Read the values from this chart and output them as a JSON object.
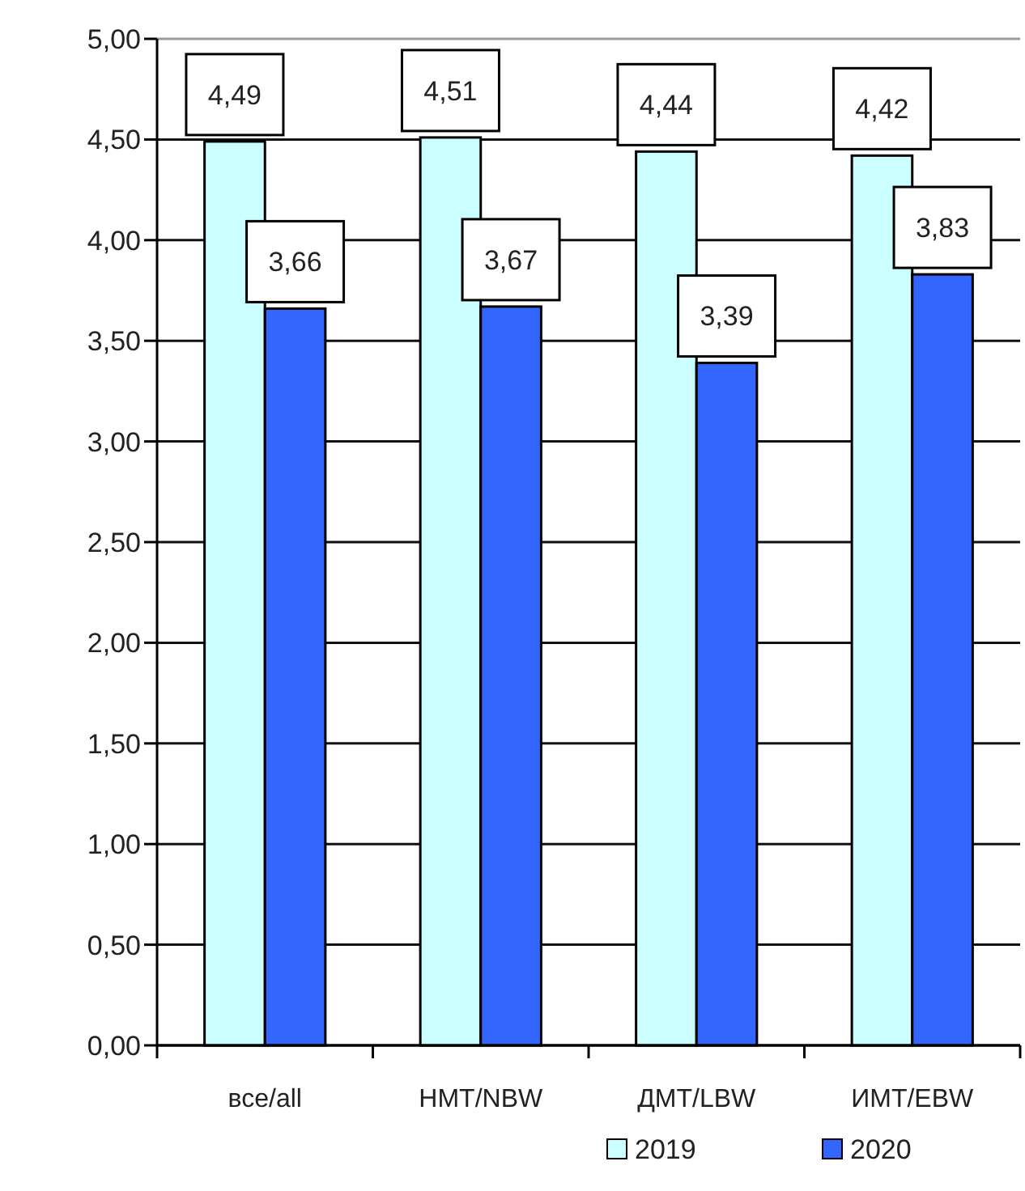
{
  "chart_data": {
    "type": "bar",
    "categories": [
      "все/all",
      "НМТ/NBW",
      "ДМТ/LBW",
      "ИМТ/EBW"
    ],
    "series": [
      {
        "name": "2019",
        "color": "#ccffff",
        "values": [
          4.49,
          4.51,
          4.44,
          4.42
        ],
        "value_labels": [
          "4,49",
          "4,51",
          "4,44",
          "4,42"
        ]
      },
      {
        "name": "2020",
        "color": "#3366ff",
        "values": [
          3.66,
          3.67,
          3.39,
          3.83
        ],
        "value_labels": [
          "3,66",
          "3,67",
          "3,39",
          "3,83"
        ]
      }
    ],
    "ylim": [
      0,
      5
    ],
    "yticks": [
      {
        "value": 0,
        "label": "0,00"
      },
      {
        "value": 0.5,
        "label": "0,50"
      },
      {
        "value": 1,
        "label": "1,00"
      },
      {
        "value": 1.5,
        "label": "1,50"
      },
      {
        "value": 2,
        "label": "2,00"
      },
      {
        "value": 2.5,
        "label": "2,50"
      },
      {
        "value": 3,
        "label": "3,00"
      },
      {
        "value": 3.5,
        "label": "3,50"
      },
      {
        "value": 4,
        "label": "4,00"
      },
      {
        "value": 4.5,
        "label": "4,50"
      },
      {
        "value": 5,
        "label": "5,00"
      }
    ],
    "grid": "y",
    "legend": "bottom right"
  }
}
